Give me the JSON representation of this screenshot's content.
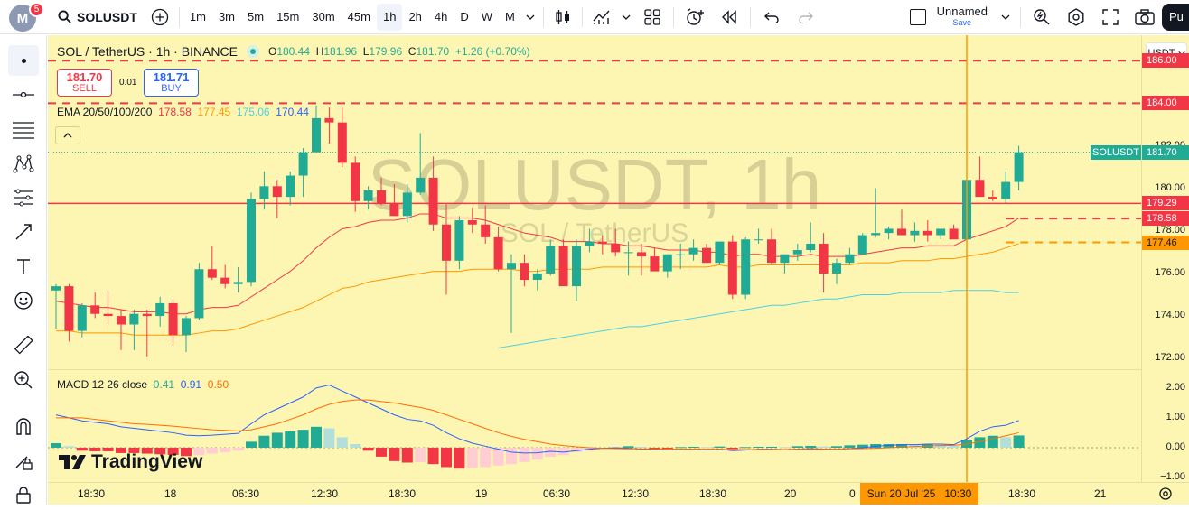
{
  "header": {
    "avatar_letter": "M",
    "notifications": "5",
    "symbol": "SOLUSDT",
    "timeframes": [
      "1m",
      "3m",
      "5m",
      "15m",
      "30m",
      "45m",
      "1h",
      "2h",
      "4h",
      "D",
      "W",
      "M"
    ],
    "active_timeframe": "1h",
    "layout_name": "Unnamed",
    "layout_status": "Save",
    "publish_label": "Pu"
  },
  "legend": {
    "title": "SOL / TetherUS · 1h · BINANCE",
    "o_label": "O",
    "o": "180.44",
    "h_label": "H",
    "h": "181.96",
    "l_label": "L",
    "l": "179.96",
    "c_label": "C",
    "c": "181.70",
    "change": "+1.26 (+0.70%)"
  },
  "trade": {
    "sell_price": "181.70",
    "sell_label": "SELL",
    "spread": "0.01",
    "buy_price": "181.71",
    "buy_label": "BUY"
  },
  "ema": {
    "label": "EMA 20/50/100/200",
    "v20": "178.58",
    "v50": "177.45",
    "v100": "175.06",
    "v200": "170.44",
    "c20": "#f23645",
    "c50": "#ff9800",
    "c100": "#4dd0e1",
    "c200": "#2962ff"
  },
  "macd": {
    "label": "MACD 12 26 close",
    "hist": "0.41",
    "macd": "0.91",
    "signal": "0.50"
  },
  "watermark": {
    "line1": "SOLUSDT, 1h",
    "line2": "SOL / TetherUS"
  },
  "branding": {
    "name": "TradingView"
  },
  "price_scale": {
    "currency": "USDT",
    "labels": [
      "186.00",
      "184.00",
      "182.00",
      "180.00",
      "178.00",
      "176.00",
      "174.00",
      "172.00"
    ],
    "macd_labels": [
      "2.00",
      "1.00",
      "0.00",
      "−1.00"
    ],
    "tags": [
      {
        "text": "186.00",
        "bg": "#f23645"
      },
      {
        "text": "184.00",
        "bg": "#f23645"
      },
      {
        "text": "181.70",
        "bg": "#22ab94",
        "name": "SOLUSDT"
      },
      {
        "text": "179.29",
        "bg": "#f23645"
      },
      {
        "text": "178.58",
        "bg": "#f23645"
      },
      {
        "text": "177.46",
        "bg": "#ff9800"
      }
    ]
  },
  "time_scale": {
    "labels": [
      "18:30",
      "18",
      "06:30",
      "12:30",
      "18:30",
      "19",
      "06:30",
      "12:30",
      "18:30",
      "20",
      "0"
    ],
    "crosshair_label": "Sun 20 Jul '25   10:30",
    "after_labels": [
      "18:30",
      "21"
    ]
  },
  "colors": {
    "up": "#22ab94",
    "down": "#f23645",
    "background": "#fdf6b2",
    "crosshair": "#ff9800"
  },
  "chart_data": {
    "type": "candlestick",
    "ylim": [
      171.5,
      187.2
    ],
    "candles": [
      [
        175.2,
        175.5,
        173.4,
        175.4
      ],
      [
        175.4,
        175.5,
        172.8,
        173.3
      ],
      [
        173.3,
        174.6,
        173.0,
        174.5
      ],
      [
        174.5,
        175.1,
        173.9,
        174.1
      ],
      [
        174.1,
        175.2,
        173.6,
        174.0
      ],
      [
        174.0,
        174.3,
        172.4,
        173.6
      ],
      [
        173.6,
        174.3,
        172.4,
        174.1
      ],
      [
        174.1,
        174.3,
        172.1,
        174.0
      ],
      [
        174.0,
        174.9,
        173.5,
        174.6
      ],
      [
        174.6,
        174.8,
        172.6,
        173.1
      ],
      [
        173.1,
        174.0,
        172.3,
        173.9
      ],
      [
        173.9,
        176.5,
        173.8,
        176.2
      ],
      [
        176.2,
        177.3,
        175.7,
        175.8
      ],
      [
        175.8,
        176.4,
        175.3,
        175.5
      ],
      [
        175.5,
        176.3,
        175.1,
        175.6
      ],
      [
        175.6,
        179.8,
        175.4,
        179.5
      ],
      [
        179.5,
        180.8,
        179.0,
        180.1
      ],
      [
        180.1,
        180.4,
        178.6,
        179.6
      ],
      [
        179.6,
        180.8,
        179.2,
        180.6
      ],
      [
        180.6,
        181.9,
        179.6,
        181.7
      ],
      [
        181.7,
        183.9,
        181.7,
        183.3
      ],
      [
        183.3,
        183.8,
        182.1,
        183.1
      ],
      [
        183.1,
        183.8,
        181.0,
        181.2
      ],
      [
        181.2,
        181.5,
        178.9,
        179.4
      ],
      [
        179.4,
        180.1,
        179.0,
        179.9
      ],
      [
        179.9,
        180.5,
        179.2,
        179.3
      ],
      [
        179.3,
        180.2,
        178.7,
        178.7
      ],
      [
        178.7,
        180.2,
        178.4,
        179.8
      ],
      [
        179.8,
        182.6,
        179.7,
        180.5
      ],
      [
        180.5,
        181.5,
        178.0,
        178.3
      ],
      [
        178.3,
        179.3,
        175.0,
        176.6
      ],
      [
        176.6,
        178.7,
        176.2,
        178.5
      ],
      [
        178.5,
        179.1,
        177.9,
        178.3
      ],
      [
        178.3,
        179.2,
        177.4,
        177.7
      ],
      [
        177.7,
        178.2,
        176.1,
        176.2
      ],
      [
        176.2,
        176.9,
        173.2,
        176.5
      ],
      [
        176.5,
        176.9,
        175.4,
        175.7
      ],
      [
        175.7,
        176.2,
        175.2,
        176.0
      ],
      [
        176.0,
        177.6,
        175.9,
        177.3
      ],
      [
        177.3,
        177.6,
        175.5,
        175.4
      ],
      [
        175.4,
        177.6,
        174.7,
        177.3
      ],
      [
        177.3,
        178.1,
        177.0,
        177.5
      ],
      [
        177.5,
        177.8,
        176.9,
        177.4
      ],
      [
        177.4,
        178.1,
        176.8,
        177.0
      ],
      [
        177.0,
        177.5,
        175.9,
        177.0
      ],
      [
        177.0,
        177.4,
        175.9,
        176.8
      ],
      [
        176.8,
        177.2,
        176.1,
        176.1
      ],
      [
        176.1,
        176.9,
        175.8,
        176.9
      ],
      [
        176.9,
        177.4,
        176.2,
        176.9
      ],
      [
        176.9,
        177.6,
        176.6,
        177.2
      ],
      [
        177.2,
        177.4,
        176.5,
        176.5
      ],
      [
        176.5,
        177.5,
        176.4,
        177.5
      ],
      [
        177.5,
        177.8,
        174.8,
        175.0
      ],
      [
        175.0,
        177.7,
        174.8,
        177.6
      ],
      [
        177.6,
        178.1,
        177.4,
        177.6
      ],
      [
        177.6,
        178.1,
        176.4,
        176.5
      ],
      [
        176.5,
        176.9,
        176.0,
        176.9
      ],
      [
        176.9,
        177.4,
        176.6,
        177.1
      ],
      [
        177.1,
        178.4,
        177.0,
        177.4
      ],
      [
        177.4,
        177.9,
        175.1,
        176.0
      ],
      [
        176.0,
        176.7,
        175.5,
        176.5
      ],
      [
        176.5,
        177.2,
        176.4,
        176.9
      ],
      [
        176.9,
        177.9,
        176.9,
        177.8
      ],
      [
        177.8,
        180.0,
        177.7,
        177.9
      ],
      [
        177.9,
        178.2,
        177.6,
        178.1
      ],
      [
        178.1,
        179.0,
        177.8,
        177.8
      ],
      [
        177.8,
        178.4,
        177.5,
        178.0
      ],
      [
        178.0,
        178.5,
        177.5,
        177.8
      ],
      [
        177.8,
        178.0,
        177.6,
        178.1
      ],
      [
        178.1,
        178.3,
        177.7,
        177.6
      ],
      [
        177.6,
        180.7,
        177.4,
        180.4
      ],
      [
        180.4,
        181.5,
        179.6,
        179.6
      ],
      [
        179.6,
        179.9,
        179.4,
        179.5
      ],
      [
        179.5,
        180.8,
        179.3,
        180.3
      ],
      [
        180.3,
        182.0,
        179.9,
        181.7
      ]
    ],
    "ema20": [
      174.7,
      174.6,
      174.5,
      174.4,
      174.4,
      174.3,
      174.2,
      174.2,
      174.2,
      174.1,
      174.1,
      174.3,
      174.4,
      174.4,
      174.5,
      174.9,
      175.3,
      175.7,
      176.1,
      176.6,
      177.2,
      177.7,
      178.1,
      178.2,
      178.4,
      178.5,
      178.5,
      178.6,
      178.8,
      178.8,
      178.6,
      178.6,
      178.6,
      178.5,
      178.3,
      178.1,
      177.9,
      177.8,
      177.7,
      177.5,
      177.5,
      177.5,
      177.4,
      177.4,
      177.3,
      177.3,
      177.2,
      177.1,
      177.1,
      177.1,
      177.0,
      177.0,
      176.8,
      176.9,
      176.9,
      176.8,
      176.8,
      176.8,
      176.9,
      176.8,
      176.8,
      176.8,
      176.9,
      177.0,
      177.1,
      177.2,
      177.2,
      177.3,
      177.3,
      177.3,
      177.6,
      177.8,
      178.0,
      178.2,
      178.6
    ],
    "ema50": [
      173.3,
      173.3,
      173.2,
      173.2,
      173.2,
      173.2,
      173.1,
      173.1,
      173.1,
      173.1,
      173.1,
      173.2,
      173.3,
      173.3,
      173.4,
      173.6,
      173.8,
      174.0,
      174.2,
      174.4,
      174.7,
      175.0,
      175.3,
      175.4,
      175.6,
      175.7,
      175.8,
      175.9,
      176.0,
      176.1,
      176.1,
      176.1,
      176.2,
      176.2,
      176.2,
      176.2,
      176.1,
      176.1,
      176.2,
      176.2,
      176.2,
      176.2,
      176.3,
      176.3,
      176.3,
      176.3,
      176.3,
      176.3,
      176.3,
      176.3,
      176.3,
      176.4,
      176.3,
      176.3,
      176.4,
      176.4,
      176.4,
      176.4,
      176.4,
      176.4,
      176.4,
      176.4,
      176.5,
      176.5,
      176.5,
      176.6,
      176.6,
      176.6,
      176.7,
      176.7,
      176.8,
      176.9,
      177.0,
      177.2,
      177.4
    ],
    "ema100_start_index": 34,
    "ema100": [
      172.5,
      172.6,
      172.7,
      172.8,
      172.9,
      173.0,
      173.1,
      173.2,
      173.3,
      173.4,
      173.5,
      173.5,
      173.6,
      173.7,
      173.8,
      173.9,
      174.0,
      174.1,
      174.2,
      174.3,
      174.4,
      174.5,
      174.5,
      174.6,
      174.7,
      174.8,
      174.8,
      174.9,
      175.0,
      175.0,
      175.0,
      175.1,
      175.1,
      175.1,
      175.1,
      175.2,
      175.2,
      175.2,
      175.2,
      175.1,
      175.1
    ],
    "hlines": [
      {
        "price": 186.0,
        "style": "dashed",
        "color": "#f23645"
      },
      {
        "price": 184.0,
        "style": "dashed",
        "color": "#f23645"
      },
      {
        "price": 179.29,
        "style": "solid",
        "color": "#f23645"
      },
      {
        "price": 178.58,
        "style": "dashed",
        "color": "#f23645",
        "from_index": 73
      },
      {
        "price": 177.46,
        "style": "dashed",
        "color": "#ff9800",
        "from_index": 73
      }
    ],
    "crosshair_index": 70,
    "macd_ylim": [
      -1.15,
      2.6
    ],
    "macd_line": [
      1.1,
      1.0,
      0.9,
      0.85,
      0.8,
      0.7,
      0.65,
      0.6,
      0.55,
      0.5,
      0.42,
      0.4,
      0.42,
      0.45,
      0.48,
      0.8,
      1.1,
      1.3,
      1.5,
      1.7,
      2.0,
      2.1,
      1.9,
      1.7,
      1.5,
      1.3,
      1.1,
      0.95,
      0.9,
      0.75,
      0.5,
      0.3,
      0.15,
      0.05,
      -0.05,
      -0.15,
      -0.18,
      -0.17,
      -0.12,
      -0.15,
      -0.1,
      -0.05,
      -0.02,
      0.0,
      -0.02,
      -0.05,
      -0.05,
      -0.06,
      -0.05,
      -0.05,
      -0.06,
      -0.05,
      -0.1,
      -0.08,
      -0.05,
      -0.05,
      -0.06,
      -0.05,
      -0.03,
      -0.05,
      -0.05,
      -0.03,
      0.0,
      0.05,
      0.08,
      0.1,
      0.1,
      0.12,
      0.12,
      0.1,
      0.3,
      0.55,
      0.7,
      0.75,
      0.91
    ],
    "signal_line": [
      1.0,
      1.0,
      1.0,
      0.95,
      0.9,
      0.85,
      0.8,
      0.78,
      0.75,
      0.72,
      0.68,
      0.64,
      0.6,
      0.58,
      0.56,
      0.6,
      0.7,
      0.8,
      0.95,
      1.1,
      1.3,
      1.45,
      1.55,
      1.6,
      1.6,
      1.55,
      1.5,
      1.42,
      1.35,
      1.25,
      1.1,
      0.95,
      0.8,
      0.65,
      0.5,
      0.38,
      0.28,
      0.2,
      0.12,
      0.07,
      0.03,
      0.0,
      -0.02,
      -0.03,
      -0.04,
      -0.04,
      -0.04,
      -0.05,
      -0.05,
      -0.05,
      -0.05,
      -0.05,
      -0.06,
      -0.06,
      -0.06,
      -0.06,
      -0.06,
      -0.05,
      -0.05,
      -0.05,
      -0.05,
      -0.04,
      -0.03,
      -0.02,
      0.0,
      0.02,
      0.04,
      0.06,
      0.07,
      0.08,
      0.12,
      0.2,
      0.3,
      0.4,
      0.5
    ],
    "macd_hist": [
      0.15,
      0.05,
      -0.1,
      -0.12,
      -0.12,
      -0.18,
      -0.18,
      -0.2,
      -0.22,
      -0.24,
      -0.28,
      -0.25,
      -0.2,
      -0.15,
      -0.1,
      0.2,
      0.4,
      0.5,
      0.55,
      0.6,
      0.7,
      0.65,
      0.35,
      0.12,
      -0.1,
      -0.3,
      -0.45,
      -0.5,
      -0.48,
      -0.55,
      -0.65,
      -0.7,
      -0.68,
      -0.65,
      -0.6,
      -0.55,
      -0.48,
      -0.4,
      -0.3,
      -0.25,
      -0.15,
      -0.1,
      -0.05,
      -0.03,
      0.05,
      0.03,
      -0.02,
      -0.02,
      0.02,
      0.03,
      0.02,
      0.04,
      -0.04,
      0.02,
      0.03,
      0.03,
      0.02,
      0.05,
      0.06,
      0.04,
      0.05,
      0.08,
      0.1,
      0.12,
      0.12,
      0.12,
      0.1,
      0.12,
      0.1,
      0.06,
      0.25,
      0.35,
      0.4,
      0.35,
      0.41
    ]
  }
}
